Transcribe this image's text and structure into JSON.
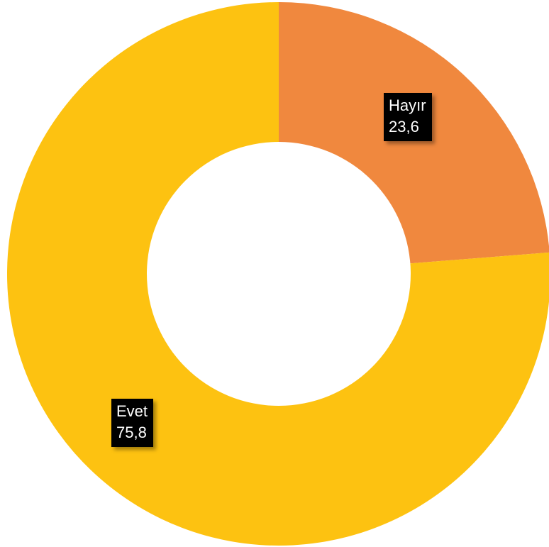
{
  "chart_data": {
    "type": "pie",
    "donut": true,
    "categories": [
      "Hayır",
      "Evet"
    ],
    "values": [
      23.6,
      75.8
    ],
    "value_labels": [
      "23,6",
      "75,8"
    ],
    "colors": [
      "#F0883E",
      "#FDC211"
    ],
    "start_angle": "top",
    "direction": "clockwise",
    "legend": "none"
  }
}
